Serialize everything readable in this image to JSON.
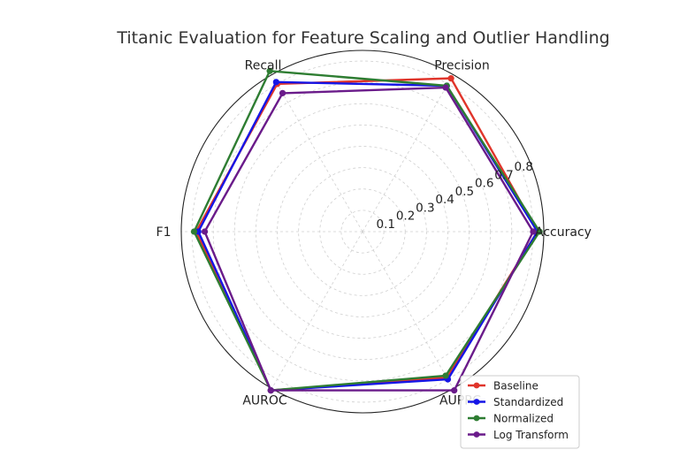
{
  "chart_data": {
    "type": "radar",
    "title": "Titanic Evaluation for Feature Scaling and Outlier Handling",
    "categories": [
      "Accuracy",
      "Precision",
      "Recall",
      "F1",
      "AUROC",
      "AUPRC"
    ],
    "radial_ticks": [
      "0.1",
      "0.2",
      "0.3",
      "0.4",
      "0.5",
      "0.6",
      "0.7",
      "0.8"
    ],
    "rmax": 0.85,
    "grid": true,
    "legend_position": "lower-right",
    "series": [
      {
        "name": "Baseline",
        "color": "#e0352b",
        "values": [
          0.82,
          0.83,
          0.8,
          0.78,
          0.86,
          0.79
        ]
      },
      {
        "name": "Standardized",
        "color": "#1515e6",
        "values": [
          0.82,
          0.79,
          0.81,
          0.77,
          0.86,
          0.8
        ]
      },
      {
        "name": "Normalized",
        "color": "#2e7d32",
        "values": [
          0.83,
          0.79,
          0.87,
          0.79,
          0.86,
          0.78
        ]
      },
      {
        "name": "Log Transform",
        "color": "#6a1b8a",
        "values": [
          0.8,
          0.78,
          0.75,
          0.74,
          0.86,
          0.86
        ]
      }
    ]
  }
}
